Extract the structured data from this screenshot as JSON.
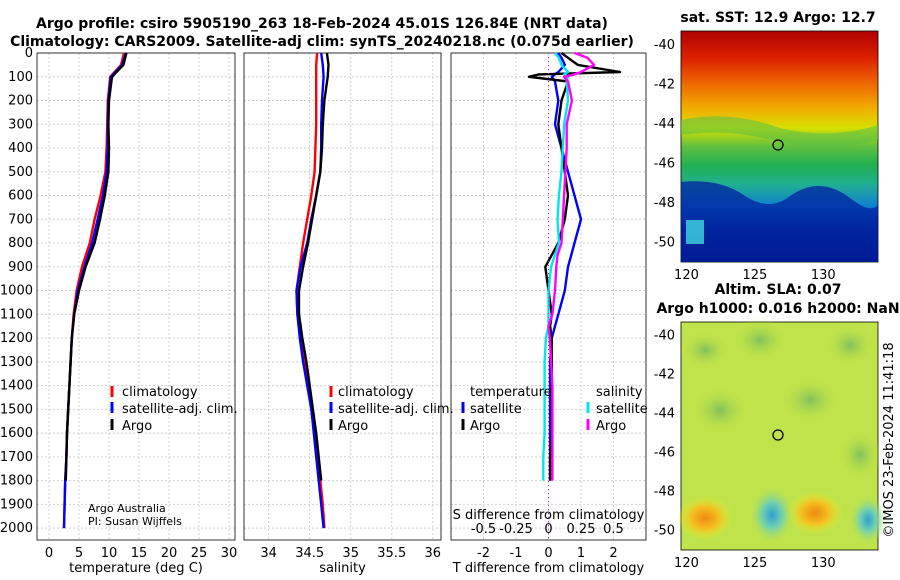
{
  "title": {
    "line1": "Argo profile: csiro 5905190_263 18-Feb-2024 45.01S 126.84E (NRT data)",
    "line2": "Climatology: CARS2009. Satellite-adj clim: synTS_20240218.nc (0.075d earlier)"
  },
  "colors": {
    "climatology": "#ff0000",
    "satellite": "#0000ff",
    "argo": "#000000",
    "s_satellite": "#00e5ee",
    "s_argo": "#ff00ff"
  },
  "chart_data": [
    {
      "type": "line",
      "name": "temperature",
      "xlabel": "temperature (deg C)",
      "xlim": [
        -2,
        31
      ],
      "xticks": [
        0,
        5,
        10,
        15,
        20,
        25,
        30
      ],
      "ylim": [
        0,
        2050
      ],
      "yticks": [
        0,
        100,
        200,
        300,
        400,
        500,
        600,
        700,
        800,
        900,
        1000,
        1100,
        1200,
        1300,
        1400,
        1500,
        1600,
        1700,
        1800,
        1900,
        2000
      ],
      "depth": [
        0,
        50,
        100,
        200,
        300,
        400,
        500,
        600,
        700,
        800,
        900,
        1000,
        1100,
        1200,
        1300,
        1400,
        1500,
        1600,
        1700,
        1800,
        1900,
        2000
      ],
      "series": [
        {
          "name": "climatology",
          "values": [
            12.5,
            12.0,
            10.2,
            9.8,
            9.7,
            9.6,
            9.4,
            8.6,
            7.6,
            6.8,
            5.5,
            4.6,
            4.1,
            3.8,
            3.6,
            3.4,
            3.2,
            3.0,
            2.9,
            2.7,
            2.6,
            2.5
          ]
        },
        {
          "name": "satellite-adj. clim.",
          "values": [
            12.8,
            12.2,
            10.3,
            9.9,
            9.8,
            9.8,
            9.6,
            9.0,
            8.1,
            7.2,
            5.9,
            4.8,
            4.2,
            3.8,
            3.6,
            3.4,
            3.2,
            3.0,
            2.9,
            2.7,
            2.6,
            2.5
          ]
        },
        {
          "name": "Argo",
          "values": [
            12.9,
            12.4,
            10.5,
            10.0,
            9.9,
            10.0,
            9.9,
            9.3,
            8.5,
            7.6,
            6.1,
            5.0,
            4.2,
            3.8,
            3.6,
            3.4,
            3.2,
            3.0,
            2.9,
            2.8,
            null,
            null
          ]
        }
      ],
      "legend": [
        "climatology",
        "satellite-adj. clim.",
        "Argo"
      ],
      "credit": [
        "Argo Australia",
        "PI: Susan Wijffels"
      ]
    },
    {
      "type": "line",
      "name": "salinity",
      "xlabel": "salinity",
      "xlim": [
        33.7,
        36.1
      ],
      "xticks": [
        34,
        34.5,
        35,
        35.5,
        36
      ],
      "ylim": [
        0,
        2050
      ],
      "depth": [
        0,
        50,
        100,
        200,
        300,
        400,
        500,
        600,
        700,
        800,
        900,
        1000,
        1100,
        1200,
        1300,
        1400,
        1500,
        1600,
        1700,
        1800,
        1900,
        2000
      ],
      "series": [
        {
          "name": "climatology",
          "values": [
            34.59,
            34.58,
            34.58,
            34.58,
            34.58,
            34.57,
            34.56,
            34.52,
            34.47,
            34.42,
            34.38,
            34.34,
            34.35,
            34.39,
            34.44,
            34.49,
            34.53,
            34.57,
            34.6,
            34.63,
            34.66,
            34.68
          ]
        },
        {
          "name": "satellite-adj. clim.",
          "values": [
            34.64,
            34.66,
            34.67,
            34.65,
            34.64,
            34.64,
            34.63,
            34.58,
            34.52,
            34.47,
            34.39,
            34.34,
            34.35,
            34.38,
            34.42,
            34.47,
            34.52,
            34.55,
            34.58,
            34.61,
            34.64,
            34.67
          ]
        },
        {
          "name": "Argo",
          "values": [
            34.71,
            34.73,
            34.72,
            34.68,
            34.66,
            34.65,
            34.63,
            34.58,
            34.53,
            34.48,
            34.42,
            34.37,
            34.37,
            34.41,
            34.46,
            34.5,
            34.54,
            34.58,
            34.61,
            34.64,
            null,
            null
          ]
        }
      ],
      "legend": [
        "climatology",
        "satellite-adj. clim.",
        "Argo"
      ]
    },
    {
      "type": "line",
      "name": "difference",
      "xlabel": "T difference from climatology",
      "xlabel_top": "S difference from climatology",
      "xlim": [
        -3,
        3
      ],
      "xticks": [
        -2,
        -1,
        0,
        1,
        2
      ],
      "s_xticks": [
        "-0.5",
        "-0.25",
        "0",
        "0.25",
        "0.5"
      ],
      "ylim": [
        0,
        2050
      ],
      "depth": [
        0,
        20,
        50,
        80,
        90,
        100,
        120,
        200,
        300,
        400,
        500,
        600,
        700,
        800,
        850,
        900,
        1000,
        1100,
        1150,
        1200,
        1300,
        1400,
        1500,
        1600,
        1700,
        1800
      ],
      "series": [
        {
          "name": "temperature satellite",
          "values": [
            0.3,
            0.4,
            0.5,
            0.3,
            0.2,
            0.1,
            0.2,
            0.3,
            0.2,
            0.4,
            0.6,
            0.8,
            1.0,
            0.8,
            0.7,
            0.6,
            0.5,
            0.3,
            0.2,
            0.1,
            0.05,
            0.05,
            0.05,
            0.05,
            0.05,
            0.05
          ]
        },
        {
          "name": "temperature Argo",
          "values": [
            0.4,
            0.6,
            0.9,
            2.2,
            -0.3,
            -0.6,
            0.6,
            0.4,
            0.3,
            0.4,
            0.5,
            0.6,
            0.5,
            0.3,
            0.1,
            -0.1,
            0.0,
            0.1,
            0.05,
            0.1,
            0.1,
            0.1,
            0.1,
            0.1,
            0.05,
            0.05
          ]
        },
        {
          "name": "salinity satellite",
          "values": [
            0.05,
            0.08,
            0.1,
            0.15,
            0.12,
            0.15,
            0.14,
            0.15,
            0.12,
            0.11,
            0.1,
            0.08,
            0.07,
            0.08,
            0.05,
            0.02,
            0.0,
            0.0,
            0.0,
            -0.02,
            -0.03,
            -0.03,
            -0.03,
            -0.03,
            -0.04,
            -0.04
          ]
        },
        {
          "name": "salinity Argo",
          "values": [
            0.2,
            0.3,
            0.35,
            0.25,
            0.2,
            0.12,
            0.15,
            0.18,
            0.14,
            0.14,
            0.13,
            0.12,
            0.11,
            0.1,
            0.07,
            0.06,
            0.05,
            0.03,
            0.0,
            0.01,
            0.02,
            0.03,
            0.03,
            0.03,
            0.03,
            0.03
          ]
        }
      ],
      "legend_temperature_title": "temperature",
      "legend_salinity_title": "salinity",
      "legend_items": [
        "satellite",
        "Argo"
      ]
    },
    {
      "type": "heatmap",
      "name": "sst-map",
      "title": "sat. SST: 12.9 Argo: 12.7",
      "xticks": [
        "120",
        "125",
        "130"
      ],
      "yticks": [
        "-40",
        "-42",
        "-44",
        "-46",
        "-48",
        "-50"
      ],
      "marker": {
        "lon": 126.84,
        "lat": -45.01
      }
    },
    {
      "type": "heatmap",
      "name": "sla-map",
      "title1": "Altim. SLA: 0.07",
      "title2": "Argo h1000: 0.016 h2000: NaN",
      "xticks": [
        "120",
        "125",
        "130"
      ],
      "yticks": [
        "-40",
        "-42",
        "-44",
        "-46",
        "-48",
        "-50"
      ],
      "marker": {
        "lon": 126.84,
        "lat": -45.01
      }
    }
  ],
  "watermark": "©IMOS 23-Feb-2024 11:41:18"
}
